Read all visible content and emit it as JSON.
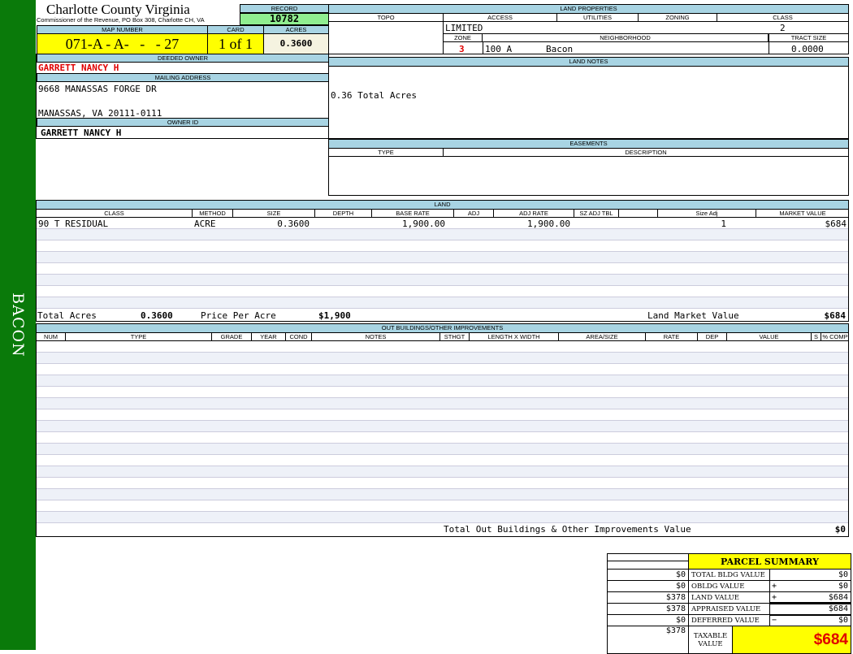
{
  "side_label": "BACON",
  "header": {
    "title": "Charlotte County Virginia",
    "subtitle": "Commissioner of the Revenue, PO Box 308, Charlotte CH, VA"
  },
  "record": {
    "label": "RECORD",
    "value": "10782"
  },
  "map": {
    "map_label": "MAP NUMBER",
    "map_value": "071-A - A-   -   - 27",
    "card_label": "CARD",
    "card_value": "1 of 1",
    "acres_label": "ACRES",
    "acres_value": "0.3600"
  },
  "owner": {
    "deeded_label": "DEEDED OWNER",
    "deeded_value": "GARRETT NANCY H",
    "mailing_label": "MAILING ADDRESS",
    "address1": "9668 MANASSAS FORGE DR",
    "address2": "MANASSAS, VA 20111-0111",
    "owner_id_label": "OWNER ID",
    "owner_id_value": "GARRETT NANCY H"
  },
  "land_properties": {
    "title": "LAND PROPERTIES",
    "topo": "TOPO",
    "access": "ACCESS",
    "utilities": "UTILITIES",
    "zoning": "ZONING",
    "class": "CLASS",
    "access_value": "LIMITED",
    "class_value": "2",
    "zone_label": "ZONE",
    "neighborhood_label": "NEIGHBORHOOD",
    "tract_label": "TRACT SIZE",
    "zone_value": "3",
    "neighborhood_code": "100 A",
    "neighborhood_name": "Bacon",
    "tract_value": "0.0000"
  },
  "land_notes": {
    "title": "LAND NOTES",
    "text": "0.36 Total Acres"
  },
  "easements": {
    "title": "EASEMENTS",
    "type": "TYPE",
    "description": "DESCRIPTION"
  },
  "land": {
    "title": "LAND",
    "columns": [
      "CLASS",
      "METHOD",
      "SIZE",
      "DEPTH",
      "BASE RATE",
      "ADJ",
      "ADJ RATE",
      "SZ ADJ TBL",
      "",
      "Size Adj",
      "MARKET VALUE"
    ],
    "rows": [
      [
        "90  T RESIDUAL",
        "ACRE",
        "0.3600",
        "",
        "1,900.00",
        "",
        "1,900.00",
        "",
        "",
        "1",
        "$684"
      ]
    ],
    "total_acres_label": "Total Acres",
    "total_acres": "0.3600",
    "price_label": "Price Per Acre",
    "price": "$1,900",
    "market_label": "Land Market Value",
    "market_value": "$684"
  },
  "outbuildings": {
    "title": "OUT BUILDINGS/OTHER IMPROVEMENTS",
    "columns": [
      "NUM",
      "TYPE",
      "GRADE",
      "YEAR",
      "COND",
      "NOTES",
      "STHGT",
      "LENGTH X WIDTH",
      "AREA/SIZE",
      "RATE",
      "DEP",
      "VALUE",
      "S",
      "% COMP"
    ],
    "total_label": "Total Out Buildings & Other Improvements Value",
    "total_value": "$0"
  },
  "summary": {
    "title": "PARCEL SUMMARY",
    "rows": [
      {
        "left": "$0",
        "label": "TOTAL BLDG VALUE",
        "op": "",
        "value": "$0"
      },
      {
        "left": "$0",
        "label": "OBLDG VALUE",
        "op": "+",
        "value": "$0"
      },
      {
        "left": "$378",
        "label": "LAND VALUE",
        "op": "+",
        "value": "$684"
      },
      {
        "left": "$378",
        "label": "APPRAISED VALUE",
        "op": "",
        "value": "$684"
      },
      {
        "left": "$0",
        "label": "DEFERRED VALUE",
        "op": "−",
        "value": "$0"
      }
    ],
    "taxable_left": "$378",
    "taxable_label": "TAXABLE VALUE",
    "taxable_value": "$684"
  },
  "colors": {
    "sidebar": "#0a7a0a",
    "header_bar": "#a8d4e3",
    "yellow": "#ffff00",
    "record_green": "#90ee90",
    "red": "#e00000"
  }
}
